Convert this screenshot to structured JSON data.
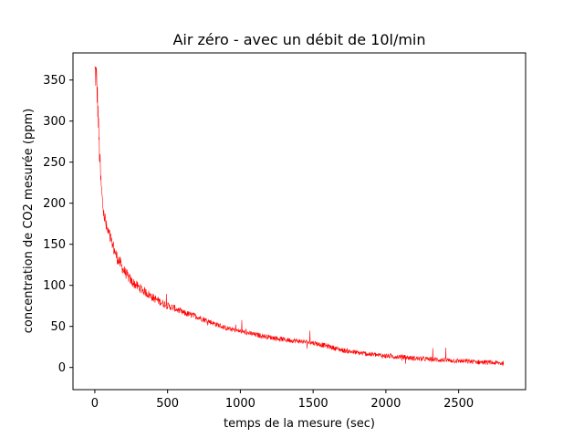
{
  "chart_data": {
    "type": "line",
    "title": "Air zéro - avec un débit de 10l/min",
    "xlabel": "temps de la mesure (sec)",
    "ylabel": "concentration de CO2 mesurée (ppm)",
    "xlim": [
      -150,
      2960
    ],
    "ylim": [
      -27,
      383
    ],
    "xticks": [
      0,
      500,
      1000,
      1500,
      2000,
      2500
    ],
    "yticks": [
      0,
      50,
      100,
      150,
      200,
      250,
      300,
      350
    ],
    "grid": false,
    "series": [
      {
        "name": "",
        "color": "#ff0000",
        "x": [
          0,
          10,
          20,
          30,
          40,
          50,
          60,
          70,
          80,
          100,
          120,
          150,
          200,
          250,
          300,
          400,
          500,
          550,
          600,
          700,
          800,
          900,
          1000,
          1100,
          1200,
          1300,
          1400,
          1500,
          1600,
          1700,
          1800,
          1900,
          2000,
          2100,
          2200,
          2300,
          2400,
          2500,
          2600,
          2700,
          2810
        ],
        "y": [
          360,
          355,
          320,
          270,
          230,
          205,
          190,
          180,
          170,
          160,
          150,
          135,
          118,
          105,
          98,
          85,
          75,
          72,
          67,
          62,
          55,
          48,
          44,
          40,
          37,
          34,
          32,
          30,
          26,
          21,
          18,
          16,
          14,
          13,
          11,
          10,
          9,
          8,
          7,
          6,
          5
        ]
      }
    ]
  }
}
